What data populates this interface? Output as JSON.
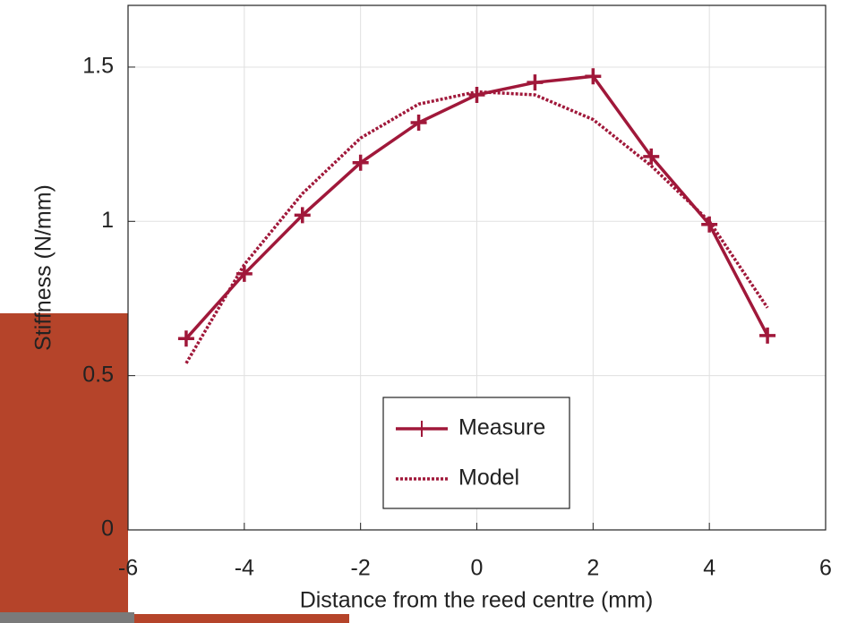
{
  "chart_data": {
    "type": "line",
    "x_label": "Distance from the reed centre (mm)",
    "y_label": "Stiffness (N/mm)",
    "xlim": [
      -6,
      6
    ],
    "xticks": [
      -6,
      -4,
      -2,
      0,
      2,
      4,
      6
    ],
    "ylim": [
      0,
      1.7
    ],
    "yticks": [
      0,
      0.5,
      1,
      1.5
    ],
    "grid": true,
    "legend": "lower center",
    "x": [
      -5,
      -4,
      -3,
      -2,
      -1,
      0,
      1,
      2,
      3,
      4,
      5
    ],
    "series": [
      {
        "name": "Measure",
        "color": "#a0183a",
        "style": "solid",
        "marker": "+",
        "values": [
          0.62,
          0.83,
          1.02,
          1.19,
          1.32,
          1.41,
          1.45,
          1.47,
          1.21,
          0.99,
          0.63
        ]
      },
      {
        "name": "Model",
        "color": "#a0183a",
        "style": "dotted",
        "values": [
          0.54,
          0.86,
          1.09,
          1.27,
          1.38,
          1.42,
          1.41,
          1.33,
          1.18,
          1.0,
          0.72
        ]
      }
    ]
  }
}
